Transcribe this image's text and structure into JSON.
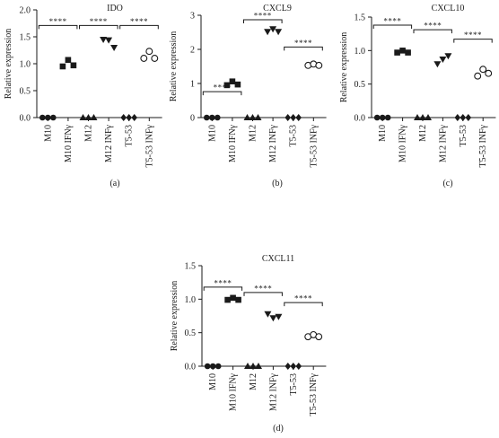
{
  "chart_data": [
    {
      "type": "scatter",
      "panel_label": "(a)",
      "title": "IDO",
      "ylabel": "Relative expression",
      "ylim": [
        0,
        2.0
      ],
      "yticks": [
        "0.0",
        "0.5",
        "1.0",
        "1.5",
        "2.0"
      ],
      "categories": [
        "M10",
        "M10 IFNγ",
        "M12",
        "M12 INFγ",
        "T5-53",
        "T5-53 INFγ"
      ],
      "marker_styles": [
        "circle",
        "square",
        "triangle-up",
        "triangle-down",
        "diamond",
        "circle-open"
      ],
      "values": [
        [
          0.0,
          0.0,
          0.0
        ],
        [
          0.95,
          1.07,
          0.97
        ],
        [
          0.0,
          0.0,
          0.0
        ],
        [
          1.45,
          1.44,
          1.3
        ],
        [
          0.0,
          0.0,
          0.0
        ],
        [
          1.1,
          1.23,
          1.1
        ]
      ],
      "significance": [
        {
          "pair": [
            0,
            1
          ],
          "label": "****"
        },
        {
          "pair": [
            2,
            3
          ],
          "label": "****"
        },
        {
          "pair": [
            4,
            5
          ],
          "label": "****"
        }
      ]
    },
    {
      "type": "scatter",
      "panel_label": "(b)",
      "title": "CXCL9",
      "ylabel": "Relative expression",
      "ylim": [
        0,
        3
      ],
      "yticks": [
        "0",
        "1",
        "2",
        "3"
      ],
      "categories": [
        "M10",
        "M10 IFNγ",
        "M12",
        "M12 INFγ",
        "T5-53",
        "T5-53 INFγ"
      ],
      "marker_styles": [
        "circle",
        "square",
        "triangle-up",
        "triangle-down",
        "diamond",
        "circle-open"
      ],
      "values": [
        [
          0.0,
          0.0,
          0.0
        ],
        [
          0.95,
          1.06,
          0.97
        ],
        [
          0.0,
          0.0,
          0.0
        ],
        [
          2.52,
          2.6,
          2.52
        ],
        [
          0.0,
          0.0,
          0.0
        ],
        [
          1.53,
          1.57,
          1.53
        ]
      ],
      "significance": [
        {
          "pair": [
            0,
            1
          ],
          "label": "****"
        },
        {
          "pair": [
            2,
            3
          ],
          "label": "****"
        },
        {
          "pair": [
            4,
            5
          ],
          "label": "****"
        }
      ]
    },
    {
      "type": "scatter",
      "panel_label": "(c)",
      "title": "CXCL10",
      "ylabel": "Relative expression",
      "ylim": [
        0,
        1.5
      ],
      "yticks": [
        "0.0",
        "0.5",
        "1.0",
        "1.5"
      ],
      "categories": [
        "M10",
        "M10 IFNγ",
        "M12",
        "M12 INFγ",
        "T5-53",
        "T5-53 INFγ"
      ],
      "marker_styles": [
        "circle",
        "square",
        "triangle-up",
        "triangle-down",
        "diamond",
        "circle-open"
      ],
      "values": [
        [
          0.0,
          0.0,
          0.0
        ],
        [
          0.97,
          1.0,
          0.97
        ],
        [
          0.0,
          0.0,
          0.0
        ],
        [
          0.8,
          0.87,
          0.92
        ],
        [
          0.0,
          0.0,
          0.0
        ],
        [
          0.62,
          0.72,
          0.66
        ]
      ],
      "significance": [
        {
          "pair": [
            0,
            1
          ],
          "label": "****"
        },
        {
          "pair": [
            2,
            3
          ],
          "label": "****"
        },
        {
          "pair": [
            4,
            5
          ],
          "label": "****"
        }
      ]
    },
    {
      "type": "scatter",
      "panel_label": "(d)",
      "title": "CXCL11",
      "ylabel": "Relative expression",
      "ylim": [
        0,
        1.5
      ],
      "yticks": [
        "0.0",
        "0.5",
        "1.0",
        "1.5"
      ],
      "categories": [
        "M10",
        "M10 IFNγ",
        "M12",
        "M12 INFγ",
        "T5-53",
        "T5-53 INFγ"
      ],
      "marker_styles": [
        "circle",
        "square",
        "triangle-up",
        "triangle-down",
        "diamond",
        "circle-open"
      ],
      "values": [
        [
          0.0,
          0.0,
          0.0
        ],
        [
          0.99,
          1.02,
          0.99
        ],
        [
          0.0,
          0.0,
          0.0
        ],
        [
          0.78,
          0.72,
          0.74
        ],
        [
          0.0,
          0.0,
          0.0
        ],
        [
          0.44,
          0.47,
          0.44
        ]
      ],
      "significance": [
        {
          "pair": [
            0,
            1
          ],
          "label": "****"
        },
        {
          "pair": [
            2,
            3
          ],
          "label": "****"
        },
        {
          "pair": [
            4,
            5
          ],
          "label": "****"
        }
      ]
    }
  ]
}
